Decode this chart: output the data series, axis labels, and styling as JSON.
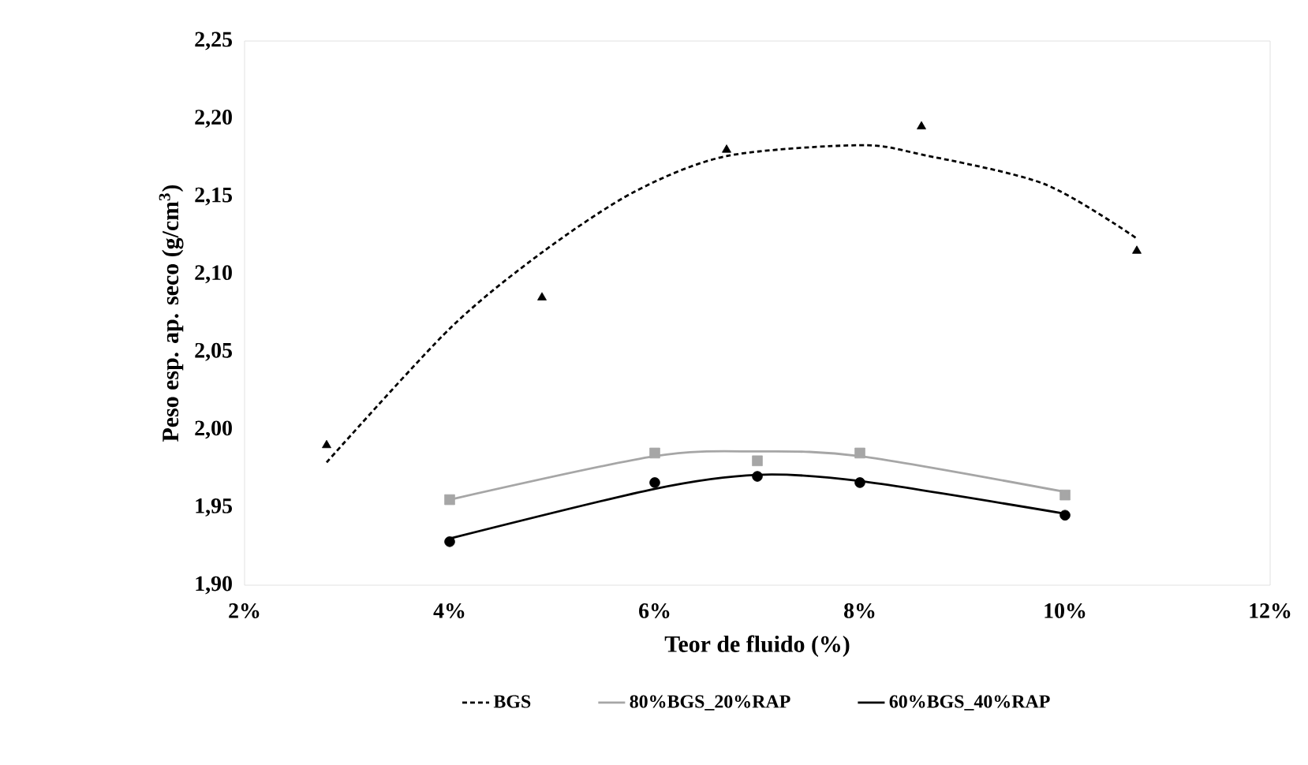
{
  "chart_data": {
    "type": "scatter",
    "xlabel": "Teor de fluido (%)",
    "ylabel": "Peso esp. ap. seco (g/cm$^{3}$)",
    "xlim": [
      2,
      12
    ],
    "ylim": [
      1.9,
      2.25
    ],
    "xticks": [
      {
        "value": 2,
        "label": "2%"
      },
      {
        "value": 4,
        "label": "4%"
      },
      {
        "value": 6,
        "label": "6%"
      },
      {
        "value": 8,
        "label": "8%"
      },
      {
        "value": 10,
        "label": "10%"
      },
      {
        "value": 12,
        "label": "12%"
      }
    ],
    "yticks": [
      {
        "value": 1.9,
        "label": "1,90"
      },
      {
        "value": 1.95,
        "label": "1,95"
      },
      {
        "value": 2.0,
        "label": "2,00"
      },
      {
        "value": 2.05,
        "label": "2,05"
      },
      {
        "value": 2.1,
        "label": "2,10"
      },
      {
        "value": 2.15,
        "label": "2,15"
      },
      {
        "value": 2.2,
        "label": "2,20"
      },
      {
        "value": 2.25,
        "label": "2,25"
      }
    ],
    "legend": "bottom",
    "series": [
      {
        "type": "scatter",
        "color": "#000000",
        "marker": "triangle",
        "x": [
          2.8,
          4.9,
          6.7,
          8.6,
          10.7
        ],
        "values": [
          1.99,
          2.085,
          2.18,
          2.195,
          2.115
        ]
      },
      {
        "type": "scatter",
        "color": "#a6a6a6",
        "marker": "square",
        "x": [
          4,
          6,
          7,
          8,
          10
        ],
        "values": [
          1.955,
          1.985,
          1.98,
          1.985,
          1.958
        ]
      },
      {
        "type": "scatter",
        "color": "#000000",
        "marker": "circle",
        "x": [
          4,
          6,
          7,
          8,
          10
        ],
        "values": [
          1.928,
          1.966,
          1.97,
          1.966,
          1.945
        ]
      },
      {
        "type": "line",
        "name": "BGS",
        "color": "#000000",
        "line_style": "dashed",
        "marker": "none",
        "x": [
          2.8,
          4.0,
          4.9,
          5.8,
          6.7,
          8.0,
          8.6,
          9.8,
          10.7
        ],
        "values": [
          1.979,
          2.065,
          2.114,
          2.153,
          2.176,
          2.183,
          2.177,
          2.158,
          2.123
        ]
      },
      {
        "type": "line",
        "name": "80%BGS_20%RAP",
        "color": "#a6a6a6",
        "line_style": "solid",
        "marker": "none",
        "x": [
          4,
          6,
          7,
          8,
          10
        ],
        "values": [
          1.955,
          1.983,
          1.986,
          1.983,
          1.96
        ]
      },
      {
        "type": "line",
        "name": "60%BGS_40%RAP",
        "color": "#000000",
        "line_style": "solid",
        "marker": "none",
        "x": [
          4,
          6,
          7,
          8,
          10
        ],
        "values": [
          1.93,
          1.962,
          1.971,
          1.967,
          1.946
        ]
      }
    ]
  }
}
